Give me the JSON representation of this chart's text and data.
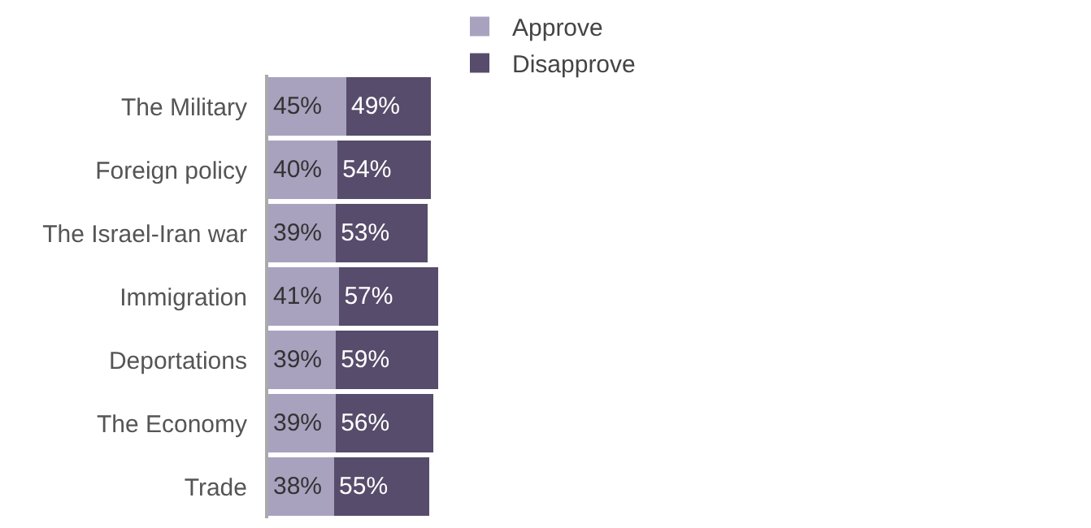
{
  "chart_data": {
    "type": "bar",
    "orientation": "horizontal",
    "stacked": true,
    "legend": "top",
    "tick_labels": "y",
    "categories": [
      "The Military",
      "Foreign policy",
      "The Israel-Iran war",
      "Immigration",
      "Deportations",
      "The Economy",
      "Trade"
    ],
    "series": [
      {
        "name": "Approve",
        "color": "#a8a2bf",
        "values": [
          45,
          40,
          39,
          41,
          39,
          39,
          38
        ],
        "value_labels": [
          "45%",
          "40%",
          "39%",
          "41%",
          "39%",
          "39%",
          "38%"
        ]
      },
      {
        "name": "Disapprove",
        "color": "#574c6b",
        "values": [
          49,
          54,
          53,
          57,
          59,
          56,
          55
        ],
        "value_labels": [
          "49%",
          "54%",
          "53%",
          "57%",
          "59%",
          "56%",
          "55%"
        ]
      }
    ]
  }
}
